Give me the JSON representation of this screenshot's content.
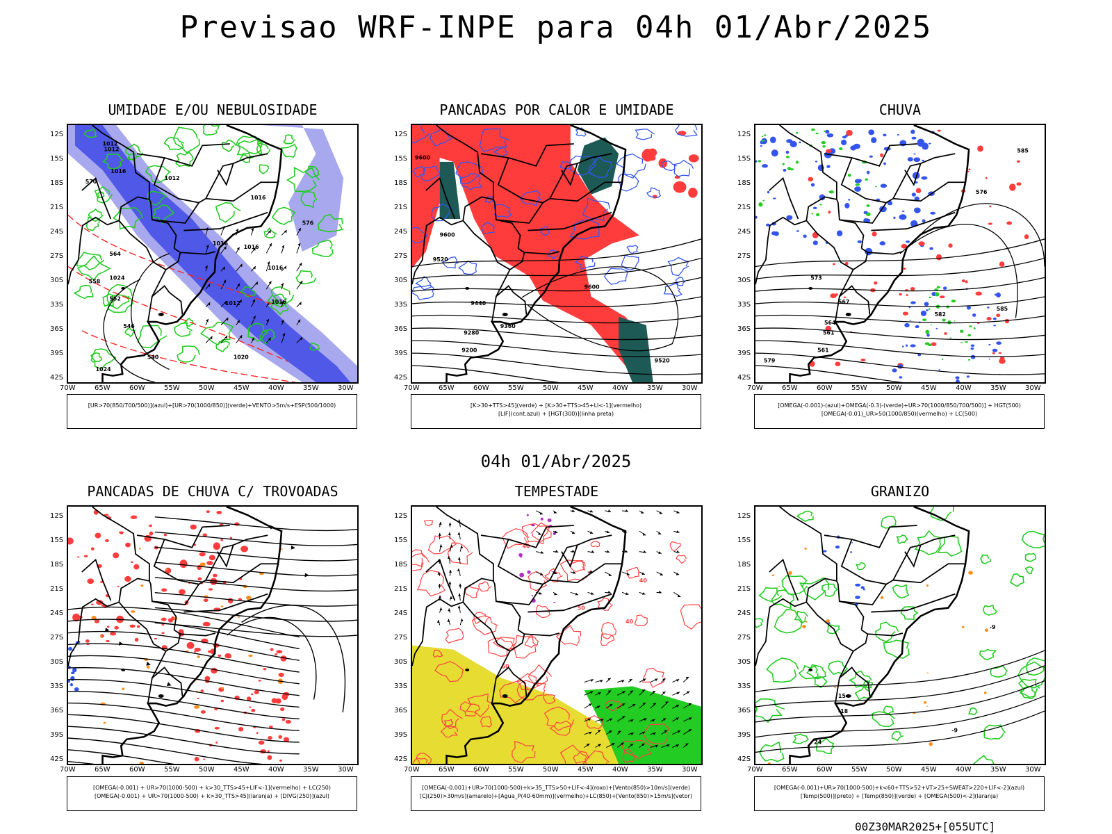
{
  "header": {
    "title": "Previsao WRF-INPE  para 04h 01/Abr/2025"
  },
  "mid_title": "04h 01/Abr/2025",
  "footer": "00Z30MAR2025+[055UTC]",
  "axes": {
    "lat_labels": [
      "12S",
      "15S",
      "18S",
      "21S",
      "24S",
      "27S",
      "30S",
      "33S",
      "36S",
      "39S",
      "42S"
    ],
    "lon_labels": [
      "70W",
      "65W",
      "60W",
      "55W",
      "50W",
      "45W",
      "40W",
      "35W",
      "30W"
    ]
  },
  "panels": [
    {
      "title": "UMIDADE E/OU NEBULOSIDADE",
      "legend": [
        "[UR>70(850/700/500)](azul)+[UR>70(1000/850)](verde)+VENTO>5m/s+ESP(500/1000)"
      ]
    },
    {
      "title": "PANCADAS POR CALOR E UMIDADE",
      "legend": [
        "[K>30+TTS>45](verde) + [K>30+TTS>45+LI<-1](vermelho)",
        "[LIF](cont.azul) + [HGT(300)](linha preta)"
      ]
    },
    {
      "title": "CHUVA",
      "legend": [
        "[OMEGA(-0.001)-(azul)+OMEGA(-0.3)-(verde)+UR>70(1000/850/700/500)] + HGT(500)",
        "[OMEGA(-0.01)_UR>50(1000/850)(vermelho) + LC(500)"
      ]
    },
    {
      "title": "PANCADAS DE CHUVA C/ TROVOADAS",
      "legend": [
        "[OMEGA(-0.001) + UR>70(1000-500) + k>30_TTS>45+LIF<-1](vermelho) + LC(250)",
        "[OMEGA(-0.001) + UR>70(1000-500) + k>30_TTS>45](laranja) + [DIVG(250)](azul)"
      ]
    },
    {
      "title": "TEMPESTADE",
      "legend": [
        "[OMEGA(-0.001)+UR>70(1000-500)+k>35_TTS>50+LIF<-4](roxo)+[Vento(850)>10m/s](verde)",
        "[CJ(250)>30m/s](amarelo)+[Agua_P(40-60mm)](vermelho)+LC(850)+[Vento(850)>15m/s](vetor)"
      ]
    },
    {
      "title": "GRANIZO",
      "legend": [
        "[OMEGA(-0.001)+UR>70(1000-500)+k<60+TTS>52+VT>25+SWEAT>220+LIF<-2](azul)",
        "[Temp(500)](preto) + [Temp(850)](verde) + [OMEGA(500)<-2](laranja)"
      ]
    }
  ],
  "contour_labels": {
    "p0": [
      "1012",
      "1012",
      "1016",
      "1012",
      "1016",
      "1016",
      "1016",
      "1016",
      "1024",
      "1012",
      "1016",
      "1020",
      "1024",
      "570",
      "564",
      "558",
      "552",
      "546",
      "540",
      "576"
    ],
    "p1": [
      "9600",
      "9520",
      "9600",
      "9440",
      "9360",
      "9280",
      "9200",
      "9520",
      "9600"
    ],
    "p2": [
      "585",
      "576",
      "573",
      "567",
      "564",
      "561",
      "561",
      "579",
      "582",
      "585"
    ],
    "p4": [
      "40",
      "50",
      "50",
      "40",
      "40"
    ],
    "p5": [
      "-9",
      "15",
      "-18",
      "24",
      "-9"
    ]
  },
  "colors": {
    "blue": "#3355ee",
    "lightblue": "#a8a8ee",
    "green": "#22cc22",
    "red": "#ff3c3c",
    "orange": "#ff8c1a",
    "yellow": "#e6dc32",
    "darkteal": "#1e5a55",
    "purple": "#b030c0"
  }
}
